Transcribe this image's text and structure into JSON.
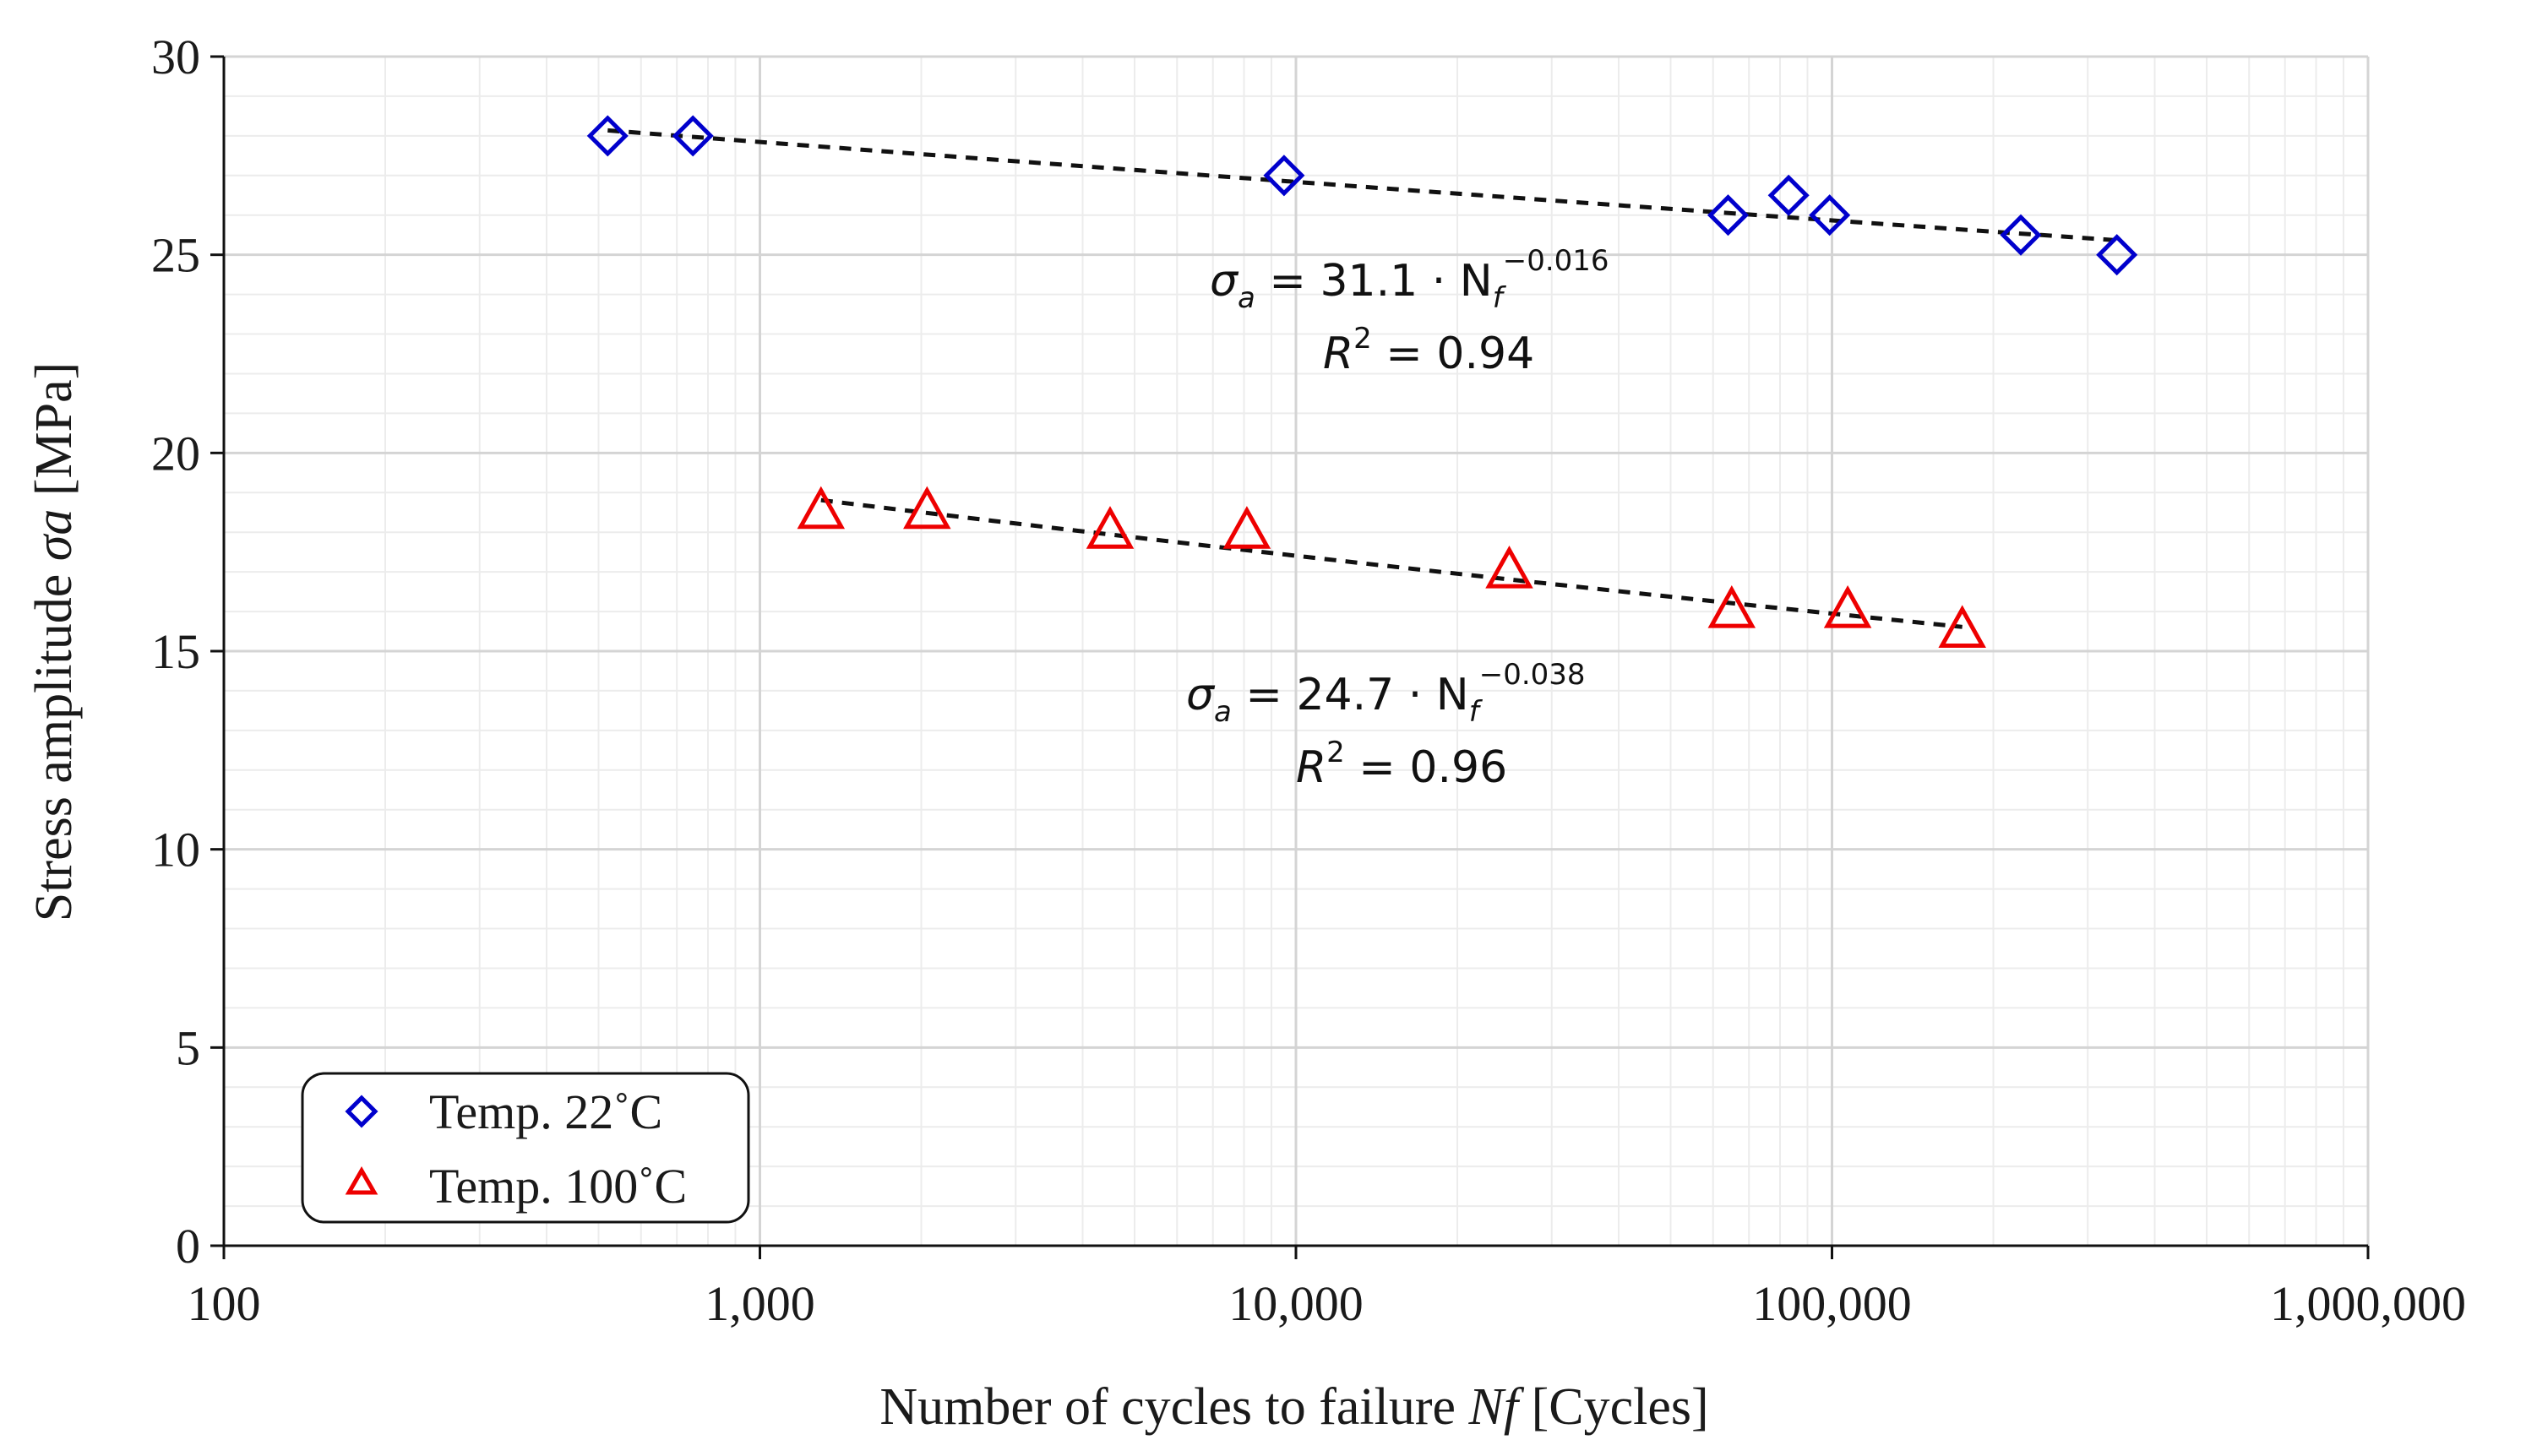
{
  "chart_data": {
    "type": "scatter",
    "x_scale": "log",
    "xlim": [
      100,
      1000000
    ],
    "ylim": [
      0,
      30
    ],
    "x_ticks": [
      100,
      1000,
      10000,
      100000,
      1000000
    ],
    "x_tick_labels": [
      "100",
      "1,000",
      "10,000",
      "100,000",
      "1,000,000"
    ],
    "y_ticks": [
      0,
      5,
      10,
      15,
      20,
      25,
      30
    ],
    "y_tick_labels": [
      "0",
      "5",
      "10",
      "15",
      "20",
      "25",
      "30"
    ],
    "grid": true,
    "xlabel": {
      "pre": "Number of cycles to failure ",
      "var": "Nf",
      "post": " [Cycles]"
    },
    "ylabel": {
      "pre": "Stress amplitude ",
      "var": "σa",
      "post": " [MPa]"
    },
    "legend_position": "bottom-left",
    "series": [
      {
        "name": "Temp. 22˚C",
        "marker": "diamond",
        "color": "#0000cc",
        "points": [
          {
            "x": 520,
            "y": 28
          },
          {
            "x": 750,
            "y": 28
          },
          {
            "x": 9500,
            "y": 27
          },
          {
            "x": 64000,
            "y": 26
          },
          {
            "x": 83000,
            "y": 26.5
          },
          {
            "x": 99000,
            "y": 26
          },
          {
            "x": 225000,
            "y": 25.5
          },
          {
            "x": 340000,
            "y": 25
          }
        ],
        "fit": {
          "coef": 31.1,
          "exp": -0.016,
          "from": 520,
          "to": 340000
        },
        "equation": {
          "lhs": "σ",
          "lhs_sub": "a",
          "mid": " = 31.1 · N",
          "n_sub": "f",
          "exp": "−0.016",
          "r_label": "R",
          "r_sup": "2",
          "r_value": " = 0.94"
        }
      },
      {
        "name": "Temp. 100˚C",
        "marker": "triangle",
        "color": "#ee0000",
        "points": [
          {
            "x": 1300,
            "y": 18.5
          },
          {
            "x": 2050,
            "y": 18.5
          },
          {
            "x": 4500,
            "y": 18
          },
          {
            "x": 8100,
            "y": 18
          },
          {
            "x": 25000,
            "y": 17
          },
          {
            "x": 65000,
            "y": 16
          },
          {
            "x": 107000,
            "y": 16
          },
          {
            "x": 175000,
            "y": 15.5
          }
        ],
        "fit": {
          "coef": 24.7,
          "exp": -0.038,
          "from": 1300,
          "to": 175000
        },
        "equation": {
          "lhs": "σ",
          "lhs_sub": "a",
          "mid": " = 24.7 · N",
          "n_sub": "f",
          "exp": "−0.038",
          "r_label": "R",
          "r_sup": "2",
          "r_value": " = 0.96"
        }
      }
    ]
  }
}
